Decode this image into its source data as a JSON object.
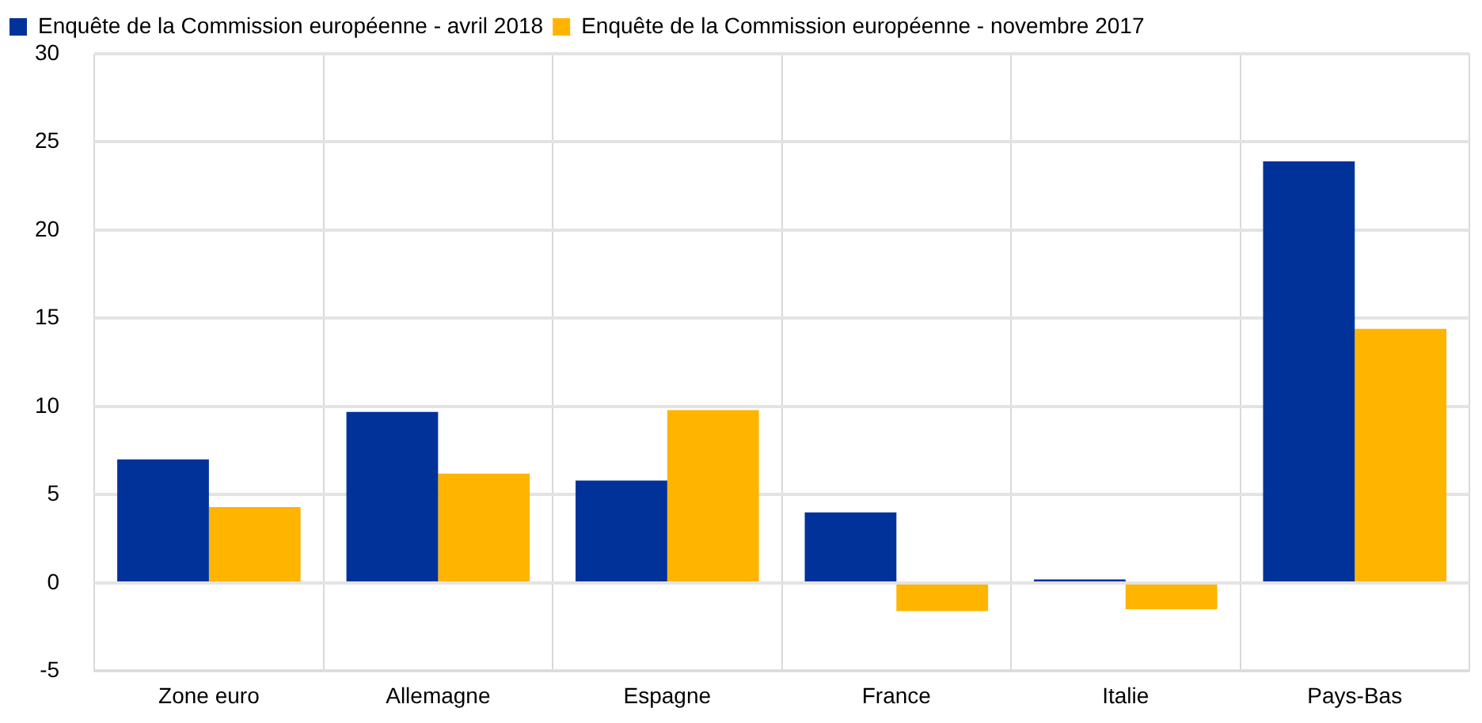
{
  "chart_data": {
    "type": "bar",
    "categories": [
      "Zone euro",
      "Allemagne",
      "Espagne",
      "France",
      "Italie",
      "Pays-Bas"
    ],
    "series": [
      {
        "name": "Enquête de la Commission européenne - avril 2018",
        "color": "#003299",
        "values": [
          7.0,
          9.7,
          5.8,
          4.0,
          0.2,
          23.9
        ]
      },
      {
        "name": "Enquête de la Commission européenne - novembre 2017",
        "color": "#ffb400",
        "values": [
          4.3,
          6.2,
          9.8,
          -1.6,
          -1.5,
          14.4
        ]
      }
    ],
    "ylim": [
      -5,
      30
    ],
    "yticks": [
      -5,
      0,
      5,
      10,
      15,
      20,
      25,
      30
    ],
    "grid": true,
    "legend": "top left"
  }
}
